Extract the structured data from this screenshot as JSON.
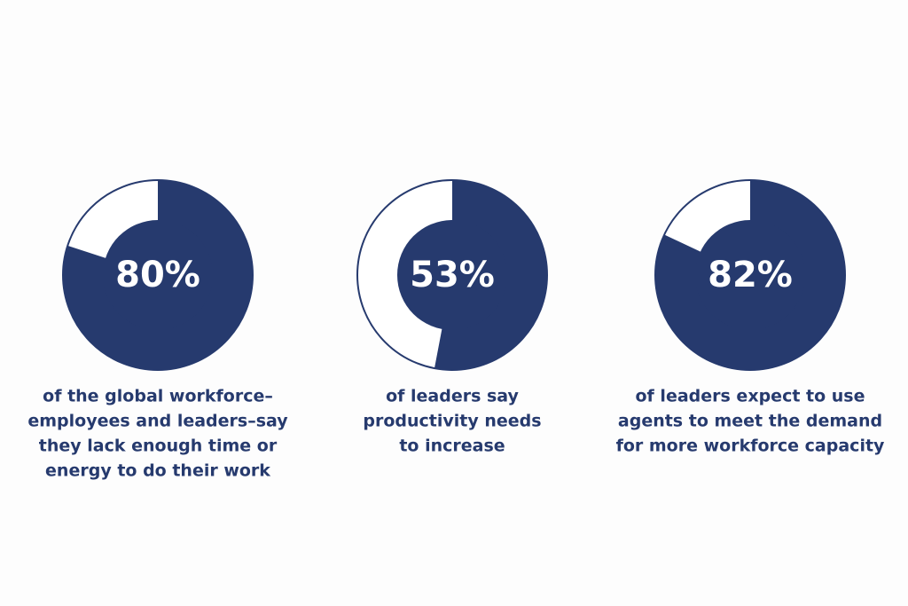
{
  "chart_data": [
    {
      "type": "donut",
      "values": [
        80
      ],
      "value_labels": [
        "80%"
      ],
      "color": "#263a6e",
      "caption": [
        "of the global workforce–",
        "employees and leaders–say",
        "they lack enough time or",
        "energy to do their work"
      ]
    },
    {
      "type": "donut",
      "values": [
        53
      ],
      "value_labels": [
        "53%"
      ],
      "color": "#263a6e",
      "caption": [
        "of leaders say",
        "productivity needs",
        "to increase"
      ]
    },
    {
      "type": "donut",
      "values": [
        82
      ],
      "value_labels": [
        "82%"
      ],
      "color": "#263a6e",
      "caption": [
        "of leaders expect to use",
        "agents to meet the demand",
        "for more workforce capacity"
      ]
    }
  ]
}
